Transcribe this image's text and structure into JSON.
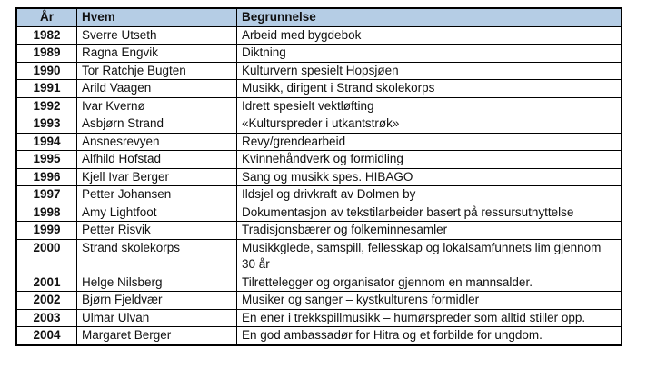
{
  "table": {
    "name": "kulturpris-mottakere",
    "headers": {
      "year": "År",
      "who": "Hvem",
      "reason": "Begrunnelse"
    },
    "rows": [
      {
        "year": "1982",
        "who": "Sverre Utseth",
        "reason": "Arbeid med bygdebok"
      },
      {
        "year": "1989",
        "who": "Ragna Engvik",
        "reason": "Diktning"
      },
      {
        "year": "1990",
        "who": "Tor Ratchje Bugten",
        "reason": "Kulturvern spesielt Hopsjøen"
      },
      {
        "year": "1991",
        "who": "Arild Vaagen",
        "reason": "Musikk, dirigent i Strand skolekorps"
      },
      {
        "year": "1992",
        "who": "Ivar Kvernø",
        "reason": "Idrett spesielt vektløfting"
      },
      {
        "year": "1993",
        "who": "Asbjørn Strand",
        "reason": "«Kulturspreder i utkantstrøk»"
      },
      {
        "year": "1994",
        "who": "Ansnesrevyen",
        "reason": "Revy/grendearbeid"
      },
      {
        "year": "1995",
        "who": "Alfhild Hofstad",
        "reason": "Kvinnehåndverk og formidling"
      },
      {
        "year": "1996",
        "who": "Kjell Ivar Berger",
        "reason": "Sang og musikk spes. HIBAGO"
      },
      {
        "year": "1997",
        "who": "Petter Johansen",
        "reason": "Ildsjel og drivkraft av Dolmen by"
      },
      {
        "year": "1998",
        "who": "Amy Lightfoot",
        "reason": "Dokumentasjon av tekstilarbeider basert på ressursutnyttelse"
      },
      {
        "year": "1999",
        "who": "Petter Risvik",
        "reason": "Tradisjonsbærer og folkeminnesamler"
      },
      {
        "year": "2000",
        "who": "Strand skolekorps",
        "reason": "Musikkglede, samspill, fellesskap og lokalsamfunnets lim gjennom 30 år"
      },
      {
        "year": "2001",
        "who": "Helge Nilsberg",
        "reason": "Tilrettelegger og organisator gjennom en mannsalder."
      },
      {
        "year": "2002",
        "who": "Bjørn Fjeldvær",
        "reason": "Musiker og sanger – kystkulturens formidler"
      },
      {
        "year": "2003",
        "who": "Ulmar Ulvan",
        "reason": "En ener i trekkspillmusikk – humørspreder som alltid stiller opp."
      },
      {
        "year": "2004",
        "who": "Margaret Berger",
        "reason": "En god ambassadør for Hitra og et forbilde for ungdom."
      }
    ],
    "colors": {
      "header_bg": "#B5CDE5",
      "border": "#000000",
      "text": "#111111"
    }
  }
}
